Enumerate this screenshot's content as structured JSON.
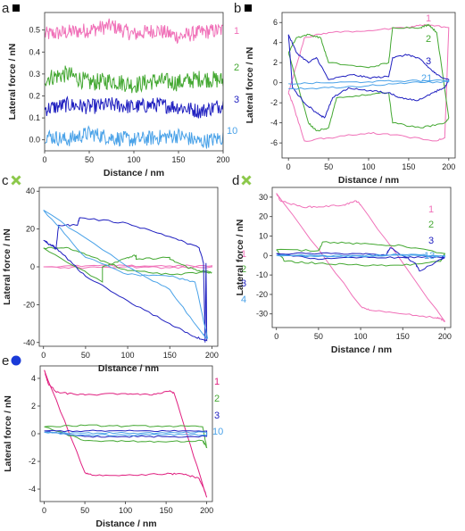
{
  "colors": {
    "pink": "#f070b8",
    "green": "#44a832",
    "darkblue": "#2020c0",
    "lightblue": "#4aa2e8",
    "magenta": "#e02080",
    "marker_square": "#000000",
    "marker_cross": "#8cc84a",
    "marker_circle": "#1a3ad8"
  },
  "chart_data": [
    {
      "panel": "a",
      "type": "line",
      "marker": "square",
      "xlabel": "Distance / nm",
      "ylabel": "Lateral force / nN",
      "xlim": [
        0,
        200
      ],
      "ylim": [
        -0.05,
        0.58
      ],
      "xticks": [
        "0",
        "50",
        "100",
        "150",
        "200"
      ],
      "yticks": [
        "0.0",
        "0.1",
        "0.2",
        "0.3",
        "0.4",
        "0.5"
      ],
      "series": [
        {
          "name": "1",
          "color": "pink",
          "baseline": 0.49,
          "noise": 0.035,
          "x": [
            0,
            25,
            50,
            75,
            100,
            125,
            150,
            175,
            200
          ],
          "y": [
            0.48,
            0.49,
            0.5,
            0.52,
            0.48,
            0.5,
            0.47,
            0.49,
            0.5
          ]
        },
        {
          "name": "2",
          "color": "green",
          "baseline": 0.27,
          "noise": 0.04,
          "x": [
            0,
            25,
            50,
            75,
            100,
            125,
            150,
            175,
            200
          ],
          "y": [
            0.28,
            0.3,
            0.26,
            0.27,
            0.25,
            0.27,
            0.26,
            0.28,
            0.27
          ]
        },
        {
          "name": "3",
          "color": "darkblue",
          "baseline": 0.15,
          "noise": 0.035,
          "x": [
            0,
            25,
            50,
            75,
            100,
            125,
            150,
            175,
            200
          ],
          "y": [
            0.14,
            0.16,
            0.15,
            0.16,
            0.15,
            0.16,
            0.15,
            0.13,
            0.16
          ]
        },
        {
          "name": "10",
          "color": "lightblue",
          "baseline": 0.01,
          "noise": 0.035,
          "x": [
            0,
            25,
            50,
            75,
            100,
            125,
            150,
            175,
            200
          ],
          "y": [
            0.02,
            0.0,
            0.03,
            0.01,
            0.0,
            0.01,
            0.02,
            -0.01,
            0.01
          ]
        }
      ]
    },
    {
      "panel": "b",
      "type": "line",
      "marker": "square",
      "xlabel": "Distance / nm",
      "ylabel": "Lateral force / nN",
      "xlim": [
        -8,
        208
      ],
      "ylim": [
        -7.5,
        7
      ],
      "xticks": [
        "0",
        "50",
        "100",
        "150",
        "200"
      ],
      "yticks": [
        "-6",
        "-4",
        "-2",
        "0",
        "2",
        "4",
        "6"
      ],
      "series": [
        {
          "name": "1",
          "color": "pink",
          "x": [
            0,
            20,
            50,
            100,
            150,
            170,
            200,
            195,
            185,
            130,
            100,
            50,
            20,
            5,
            0
          ],
          "y": [
            -1,
            4.5,
            5,
            5.2,
            5.5,
            5.8,
            5.5,
            -5.5,
            -5.8,
            -5.2,
            -5,
            -5.5,
            -5.8,
            -2,
            -1
          ]
        },
        {
          "name": "2",
          "color": "green",
          "x": [
            0,
            10,
            25,
            40,
            50,
            100,
            125,
            130,
            165,
            175,
            185,
            200,
            195,
            165,
            130,
            125,
            100,
            60,
            50,
            35,
            25,
            0
          ],
          "y": [
            3,
            4.5,
            4.8,
            4.5,
            2,
            1.5,
            2,
            5.5,
            5.5,
            5.8,
            5,
            -3.5,
            -4,
            -4.5,
            -4,
            -1,
            -1.2,
            -1.5,
            -4.5,
            -4.8,
            -4,
            3
          ]
        },
        {
          "name": "3",
          "color": "darkblue",
          "x": [
            0,
            10,
            25,
            35,
            50,
            80,
            100,
            125,
            130,
            150,
            165,
            175,
            185,
            200,
            195,
            180,
            160,
            140,
            125,
            100,
            75,
            55,
            45,
            35,
            20,
            5,
            0
          ],
          "y": [
            4.8,
            3,
            2,
            2.5,
            0.3,
            0.8,
            0.5,
            0.6,
            2.5,
            2.8,
            2.3,
            1.5,
            0.8,
            0.3,
            -0.5,
            -1,
            -1.8,
            -1.5,
            -1,
            -0.8,
            -0.5,
            -1.5,
            -3.5,
            -3,
            -2,
            -0.5,
            4.8
          ]
        },
        {
          "name": "21",
          "color": "lightblue",
          "x": [
            0,
            50,
            100,
            150,
            200,
            200,
            150,
            100,
            50,
            0
          ],
          "y": [
            -0.1,
            0,
            0.1,
            0.2,
            0.2,
            0.1,
            0,
            -0.3,
            -0.5,
            -0.6
          ]
        }
      ]
    },
    {
      "panel": "c",
      "type": "line",
      "marker": "cross",
      "xlabel": "Distance / nm",
      "ylabel": "Lateral force / nN",
      "xlim": [
        -5,
        207
      ],
      "ylim": [
        -42,
        42
      ],
      "xticks": [
        "0",
        "50",
        "100",
        "150",
        "200"
      ],
      "yticks": [
        "-40",
        "-20",
        "0",
        "20",
        "40"
      ],
      "series": [
        {
          "name": "1",
          "color": "pink",
          "x": [
            0,
            50,
            100,
            150,
            200,
            200,
            150,
            100,
            50,
            0
          ],
          "y": [
            0,
            0.5,
            0.5,
            0.5,
            0.5,
            0,
            -0.5,
            0,
            -0.5,
            0
          ]
        },
        {
          "name": "2",
          "color": "green",
          "x": [
            0,
            70,
            70,
            100,
            110,
            110,
            150,
            150,
            170,
            185,
            200,
            195,
            150,
            100,
            60,
            30,
            0
          ],
          "y": [
            10,
            -8,
            0,
            5,
            6,
            4,
            5,
            4,
            0,
            -2,
            -3,
            -3,
            -4,
            -2,
            5,
            10,
            10
          ]
        },
        {
          "name": "3",
          "color": "darkblue",
          "x": [
            0,
            15,
            18,
            40,
            43,
            100,
            150,
            185,
            190,
            192,
            193,
            194,
            180,
            150,
            100,
            50,
            20,
            0
          ],
          "y": [
            14,
            10,
            22,
            22,
            26,
            23,
            16,
            10,
            2,
            -40,
            2,
            -39,
            -37,
            -30,
            -18,
            -5,
            8,
            14
          ]
        },
        {
          "name": "4",
          "color": "lightblue",
          "x": [
            0,
            100,
            150,
            190,
            195,
            180,
            150,
            100,
            50,
            0
          ],
          "y": [
            30,
            0,
            -12,
            -36,
            -38,
            -8,
            -5,
            -4,
            5,
            30
          ]
        }
      ]
    },
    {
      "panel": "d",
      "type": "line",
      "marker": "cross",
      "xlabel": "Distance / nm",
      "ylabel": "Lateral force / nN",
      "xlim": [
        -5,
        207
      ],
      "ylim": [
        -37,
        35
      ],
      "xticks": [
        "0",
        "50",
        "100",
        "150",
        "200"
      ],
      "yticks": [
        "-30",
        "-20",
        "-10",
        "0",
        "10",
        "20",
        "30"
      ],
      "series": [
        {
          "name": "1",
          "color": "pink",
          "x": [
            0,
            5,
            30,
            50,
            80,
            95,
            100,
            200,
            198,
            190,
            150,
            110,
            100,
            0
          ],
          "y": [
            32,
            28,
            25,
            25,
            26,
            28,
            26,
            -34,
            -33,
            -32,
            -30,
            -28,
            -26,
            32
          ]
        },
        {
          "name": "2",
          "color": "green",
          "x": [
            0,
            50,
            55,
            100,
            150,
            200,
            195,
            150,
            100,
            50,
            10,
            0
          ],
          "y": [
            3,
            2.5,
            7,
            6,
            5,
            1,
            -3,
            -5,
            -5,
            -4,
            -3,
            3
          ]
        },
        {
          "name": "3",
          "color": "darkblue",
          "x": [
            0,
            50,
            100,
            130,
            135,
            165,
            170,
            200,
            195,
            150,
            100,
            50,
            0
          ],
          "y": [
            1,
            1,
            1,
            0,
            4,
            -4,
            -8,
            -1,
            -1,
            -1,
            -1,
            -2,
            1
          ]
        },
        {
          "name": "13",
          "color": "lightblue",
          "x": [
            0,
            50,
            100,
            150,
            200,
            200,
            150,
            100,
            50,
            0
          ],
          "y": [
            0,
            0,
            0,
            0.5,
            0,
            -0.5,
            0,
            -0.5,
            -0.5,
            0
          ]
        }
      ]
    },
    {
      "panel": "e",
      "type": "line",
      "marker": "circle",
      "xlabel": "Distance / nm",
      "ylabel": "Lateral force / nN",
      "xlim": [
        -5,
        207
      ],
      "ylim": [
        -4.9,
        4.9
      ],
      "xticks": [
        "0",
        "50",
        "100",
        "150",
        "200"
      ],
      "yticks": [
        "-4",
        "-2",
        "0",
        "2",
        "4"
      ],
      "series": [
        {
          "name": "1",
          "color": "magenta",
          "x": [
            0,
            5,
            15,
            30,
            50,
            100,
            130,
            155,
            160,
            200,
            198,
            190,
            170,
            150,
            100,
            60,
            50,
            0
          ],
          "y": [
            4.6,
            3.6,
            3,
            2.9,
            2.8,
            2.9,
            2.8,
            3.1,
            2.9,
            -4.6,
            -4.2,
            -3.2,
            -2.9,
            -2.9,
            -3,
            -3,
            -2.8,
            4.6
          ]
        },
        {
          "name": "2",
          "color": "green",
          "x": [
            0,
            50,
            100,
            150,
            195,
            200,
            195,
            150,
            100,
            50,
            0
          ],
          "y": [
            0.5,
            0.6,
            0.55,
            0.55,
            0.5,
            -1,
            -0.5,
            -0.6,
            -0.55,
            -0.5,
            0.5
          ]
        },
        {
          "name": "3",
          "color": "darkblue",
          "x": [
            0,
            50,
            100,
            150,
            200,
            200,
            150,
            100,
            50,
            0
          ],
          "y": [
            0.2,
            0.2,
            0.2,
            0.2,
            0.2,
            -0.2,
            -0.2,
            -0.2,
            -0.2,
            0.2
          ]
        },
        {
          "name": "10",
          "color": "lightblue",
          "x": [
            0,
            50,
            100,
            150,
            200,
            200,
            150,
            100,
            50,
            0
          ],
          "y": [
            0.1,
            0.05,
            0.05,
            0.05,
            0.1,
            -0.1,
            -0.05,
            -0.1,
            -0.1,
            0.1
          ]
        }
      ]
    }
  ]
}
